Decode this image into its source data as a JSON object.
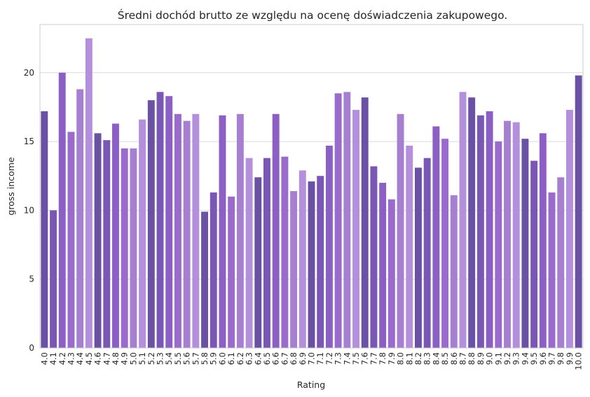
{
  "chart_data": {
    "type": "bar",
    "title": "Średni dochód brutto ze względu na ocenę doświadczenia zakupowego.",
    "xlabel": "Rating",
    "ylabel": "gross income",
    "ylim": [
      0,
      23.5
    ],
    "yticks": [
      0,
      5,
      10,
      15,
      20
    ],
    "grid": "y",
    "categories": [
      "4.0",
      "4.1",
      "4.2",
      "4.3",
      "4.4",
      "4.5",
      "4.6",
      "4.7",
      "4.8",
      "4.9",
      "5.0",
      "5.1",
      "5.2",
      "5.3",
      "5.4",
      "5.5",
      "5.6",
      "5.7",
      "5.8",
      "5.9",
      "6.0",
      "6.1",
      "6.2",
      "6.3",
      "6.4",
      "6.5",
      "6.6",
      "6.7",
      "6.8",
      "6.9",
      "7.0",
      "7.1",
      "7.2",
      "7.3",
      "7.4",
      "7.5",
      "7.6",
      "7.7",
      "7.8",
      "7.9",
      "8.0",
      "8.1",
      "8.2",
      "8.3",
      "8.4",
      "8.5",
      "8.6",
      "8.7",
      "8.8",
      "8.9",
      "9.0",
      "9.1",
      "9.2",
      "9.3",
      "9.4",
      "9.5",
      "9.6",
      "9.7",
      "9.8",
      "9.9",
      "10.0"
    ],
    "values": [
      17.2,
      10.0,
      20.0,
      15.7,
      18.8,
      22.5,
      15.6,
      15.1,
      16.3,
      14.5,
      14.5,
      16.6,
      18.0,
      18.6,
      18.3,
      17.0,
      16.5,
      17.0,
      9.9,
      11.3,
      16.9,
      11.0,
      17.0,
      13.8,
      12.4,
      13.8,
      17.0,
      13.9,
      11.4,
      12.9,
      12.1,
      12.5,
      14.7,
      18.5,
      18.6,
      17.3,
      18.2,
      13.2,
      12.0,
      10.8,
      17.0,
      14.7,
      13.1,
      13.8,
      16.1,
      15.2,
      11.1,
      18.6,
      18.2,
      16.9,
      17.2,
      15.0,
      16.5,
      16.4,
      15.2,
      13.6,
      15.6,
      11.3,
      12.4,
      17.3,
      19.8
    ],
    "palette": [
      "#6a51a3",
      "#7a56b5",
      "#8c5fc4",
      "#9a6bcc",
      "#a77fd1",
      "#b48fdc"
    ]
  }
}
